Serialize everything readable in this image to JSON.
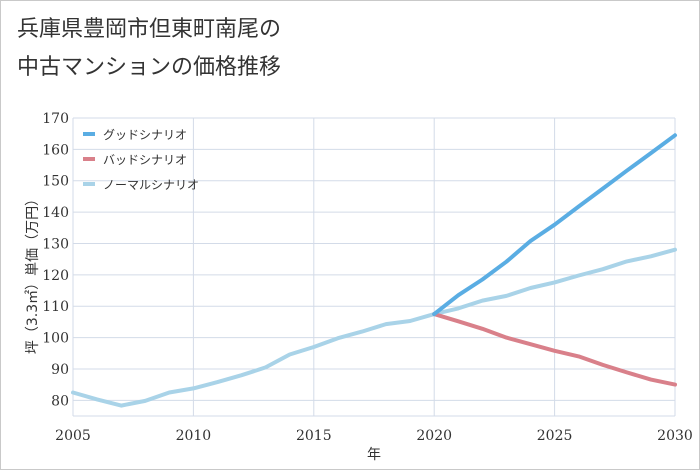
{
  "chart_data": {
    "type": "line",
    "title": [
      "兵庫県豊岡市但東町南尾の",
      "中古マンションの価格推移"
    ],
    "xlabel": "年",
    "ylabel": "坪（3.3㎡）単価（万円）",
    "xlim": [
      2005,
      2030
    ],
    "ylim": [
      75,
      170
    ],
    "xticks": [
      2005,
      2010,
      2015,
      2020,
      2025,
      2030
    ],
    "yticks": [
      80,
      90,
      100,
      110,
      120,
      130,
      140,
      150,
      160,
      170
    ],
    "grid": true,
    "legend_position": "top-left",
    "series": [
      {
        "name": "グッドシナリオ",
        "color": "#5aade3",
        "x": [
          2020,
          2021,
          2022,
          2023,
          2024,
          2025,
          2026,
          2027,
          2028,
          2029,
          2030
        ],
        "values": [
          107.5,
          113.5,
          118.5,
          124.2,
          130.8,
          136.0,
          141.8,
          147.5,
          153.2,
          158.8,
          164.5
        ]
      },
      {
        "name": "バッドシナリオ",
        "color": "#d9808a",
        "x": [
          2020,
          2021,
          2022,
          2023,
          2024,
          2025,
          2026,
          2027,
          2028,
          2029,
          2030
        ],
        "values": [
          107.5,
          105.2,
          102.8,
          100.0,
          97.9,
          95.8,
          94.0,
          91.3,
          88.9,
          86.6,
          85.0
        ]
      },
      {
        "name": "ノーマルシナリオ",
        "color": "#a9d3e8",
        "x": [
          2005,
          2006,
          2007,
          2008,
          2009,
          2010,
          2011,
          2012,
          2013,
          2014,
          2015,
          2016,
          2017,
          2018,
          2019,
          2020,
          2021,
          2022,
          2023,
          2024,
          2025,
          2026,
          2027,
          2028,
          2029,
          2030
        ],
        "values": [
          82.5,
          80.3,
          78.3,
          79.8,
          82.5,
          83.8,
          85.8,
          88.0,
          90.5,
          94.6,
          97.0,
          99.8,
          101.9,
          104.3,
          105.3,
          107.5,
          109.3,
          111.8,
          113.3,
          115.8,
          117.6,
          119.8,
          121.8,
          124.3,
          125.9,
          128.0
        ]
      }
    ]
  }
}
